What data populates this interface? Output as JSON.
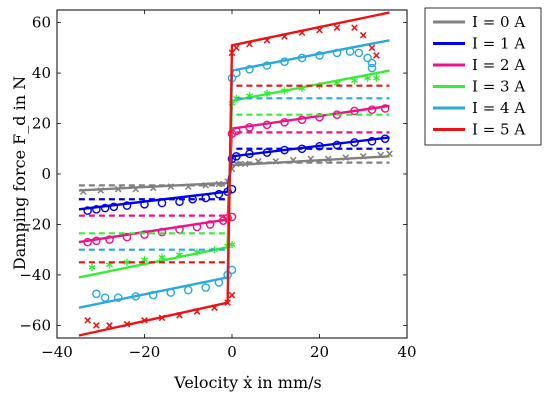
{
  "chart_data": {
    "type": "scatter",
    "xlabel": "Velocity ẋ in mm/s",
    "ylabel": "Damping force F_d in N",
    "xlim": [
      -40,
      40
    ],
    "ylim": [
      -65,
      65
    ],
    "xticks": [
      -40,
      -20,
      0,
      20,
      40
    ],
    "xtick_labels": [
      "−40",
      "−20",
      "0",
      "20",
      "40"
    ],
    "yticks": [
      -60,
      -40,
      -20,
      0,
      20,
      40,
      60
    ],
    "ytick_labels": [
      "−60",
      "−40",
      "−20",
      "0",
      "20",
      "40",
      "60"
    ],
    "legend_position": "outside-right",
    "grid": false,
    "series": [
      {
        "name": "I = 0 A",
        "legend": "I = 0 A",
        "color": "#808080",
        "marker": "x",
        "model_line": [
          [
            -35,
            -6.5
          ],
          [
            -1,
            -3.5
          ],
          [
            0,
            3.5
          ],
          [
            36,
            7
          ]
        ],
        "dashed_levels": [
          -4.5,
          4.5
        ],
        "measured": [
          [
            -34,
            -7
          ],
          [
            -30,
            -6.5
          ],
          [
            -26,
            -6
          ],
          [
            -22,
            -6
          ],
          [
            -18,
            -5.5
          ],
          [
            -14,
            -5
          ],
          [
            -10,
            -5
          ],
          [
            -6,
            -4.5
          ],
          [
            -3,
            -4
          ],
          [
            -1,
            -3
          ],
          [
            0,
            2
          ],
          [
            1,
            4
          ],
          [
            3,
            4
          ],
          [
            6,
            5
          ],
          [
            10,
            5
          ],
          [
            14,
            5.5
          ],
          [
            18,
            6
          ],
          [
            22,
            6
          ],
          [
            26,
            6.5
          ],
          [
            30,
            7
          ],
          [
            34,
            7.5
          ],
          [
            36,
            8
          ]
        ]
      },
      {
        "name": "I = 1 A",
        "legend": "I = 1 A",
        "color": "#0000ee",
        "marker": "o",
        "model_line": [
          [
            -35,
            -14
          ],
          [
            -1,
            -7
          ],
          [
            0,
            7
          ],
          [
            36,
            14.5
          ]
        ],
        "dashed_levels": [
          -10,
          10
        ],
        "measured": [
          [
            -33,
            -14.5
          ],
          [
            -31,
            -14
          ],
          [
            -29,
            -13.5
          ],
          [
            -27,
            -13
          ],
          [
            -24,
            -12.5
          ],
          [
            -20,
            -12
          ],
          [
            -16,
            -11.5
          ],
          [
            -12,
            -11
          ],
          [
            -9,
            -10
          ],
          [
            -6,
            -9.5
          ],
          [
            -3,
            -8
          ],
          [
            -1,
            -7
          ],
          [
            0,
            -6
          ],
          [
            0,
            6
          ],
          [
            1,
            7
          ],
          [
            4,
            8
          ],
          [
            8,
            8.5
          ],
          [
            12,
            9.5
          ],
          [
            16,
            10
          ],
          [
            20,
            11
          ],
          [
            24,
            11.5
          ],
          [
            28,
            12.5
          ],
          [
            32,
            13
          ],
          [
            35,
            14
          ]
        ]
      },
      {
        "name": "I = 2 A",
        "legend": "I = 2 A",
        "color": "#ee1188",
        "marker": "o",
        "model_line": [
          [
            -35,
            -27
          ],
          [
            -1,
            -18
          ],
          [
            0,
            18
          ],
          [
            36,
            27
          ]
        ],
        "dashed_levels": [
          -16.5,
          16.5
        ],
        "measured": [
          [
            -33,
            -27
          ],
          [
            -31,
            -26.5
          ],
          [
            -28,
            -26
          ],
          [
            -24,
            -25
          ],
          [
            -20,
            -24
          ],
          [
            -16,
            -23
          ],
          [
            -12,
            -22
          ],
          [
            -8,
            -21
          ],
          [
            -5,
            -20
          ],
          [
            -2,
            -18.5
          ],
          [
            -1,
            -17.5
          ],
          [
            0,
            -17
          ],
          [
            0,
            16
          ],
          [
            1,
            17
          ],
          [
            4,
            18.5
          ],
          [
            8,
            19.5
          ],
          [
            12,
            20.5
          ],
          [
            16,
            21.5
          ],
          [
            20,
            22.5
          ],
          [
            24,
            23.5
          ],
          [
            28,
            25
          ],
          [
            32,
            25.5
          ],
          [
            35,
            26
          ]
        ]
      },
      {
        "name": "I = 3 A",
        "legend": "I = 3 A",
        "color": "#33ee33",
        "marker": "*",
        "model_line": [
          [
            -35,
            -41
          ],
          [
            -1,
            -29
          ],
          [
            0,
            29
          ],
          [
            36,
            41
          ]
        ],
        "dashed_levels": [
          -23.5,
          23.5
        ],
        "measured": [
          [
            -32,
            -37
          ],
          [
            -28,
            -36
          ],
          [
            -24,
            -35
          ],
          [
            -20,
            -34
          ],
          [
            -16,
            -33
          ],
          [
            -12,
            -32
          ],
          [
            -8,
            -31
          ],
          [
            -4,
            -30
          ],
          [
            -1,
            -28.5
          ],
          [
            0,
            -28
          ],
          [
            0,
            28
          ],
          [
            1,
            30
          ],
          [
            4,
            31
          ],
          [
            8,
            32
          ],
          [
            12,
            33
          ],
          [
            16,
            34
          ],
          [
            20,
            35
          ],
          [
            24,
            36
          ],
          [
            28,
            37
          ],
          [
            31,
            38
          ],
          [
            33,
            38
          ]
        ]
      },
      {
        "name": "I = 4 A",
        "legend": "I = 4 A",
        "color": "#2aa8e0",
        "marker": "o",
        "model_line": [
          [
            -35,
            -53
          ],
          [
            -1,
            -41
          ],
          [
            0,
            41
          ],
          [
            36,
            53
          ]
        ],
        "dashed_levels": [
          -30,
          30
        ],
        "measured": [
          [
            -31,
            -47.5
          ],
          [
            -29,
            -49
          ],
          [
            -26,
            -49
          ],
          [
            -22,
            -48.5
          ],
          [
            -18,
            -48
          ],
          [
            -14,
            -47
          ],
          [
            -10,
            -46
          ],
          [
            -6,
            -45
          ],
          [
            -3,
            -43
          ],
          [
            -1,
            -40
          ],
          [
            0,
            -38
          ],
          [
            0,
            38
          ],
          [
            1,
            40
          ],
          [
            4,
            41.5
          ],
          [
            8,
            43
          ],
          [
            12,
            44.5
          ],
          [
            16,
            46
          ],
          [
            20,
            47
          ],
          [
            24,
            48
          ],
          [
            27,
            48.5
          ],
          [
            29,
            48
          ],
          [
            31,
            46
          ],
          [
            32,
            44
          ],
          [
            32,
            42
          ]
        ]
      },
      {
        "name": "I = 5 A",
        "legend": "I = 5 A",
        "color": "#ee1111",
        "marker": "x",
        "model_line": [
          [
            -35,
            -64
          ],
          [
            -1,
            -51
          ],
          [
            0,
            51
          ],
          [
            36,
            64
          ]
        ],
        "dashed_levels": [
          -35,
          35
        ],
        "measured": [
          [
            -33,
            -58
          ],
          [
            -31,
            -60
          ],
          [
            -28,
            -60
          ],
          [
            -24,
            -59.5
          ],
          [
            -20,
            -58
          ],
          [
            -16,
            -57
          ],
          [
            -12,
            -56
          ],
          [
            -8,
            -54.5
          ],
          [
            -4,
            -53
          ],
          [
            -1,
            -51
          ],
          [
            0,
            -48
          ],
          [
            0,
            48
          ],
          [
            1,
            50
          ],
          [
            4,
            51.5
          ],
          [
            8,
            53
          ],
          [
            12,
            54.5
          ],
          [
            16,
            56
          ],
          [
            20,
            57
          ],
          [
            24,
            58
          ],
          [
            28,
            58
          ],
          [
            30,
            55
          ],
          [
            32,
            50
          ],
          [
            33,
            47
          ]
        ]
      }
    ]
  }
}
